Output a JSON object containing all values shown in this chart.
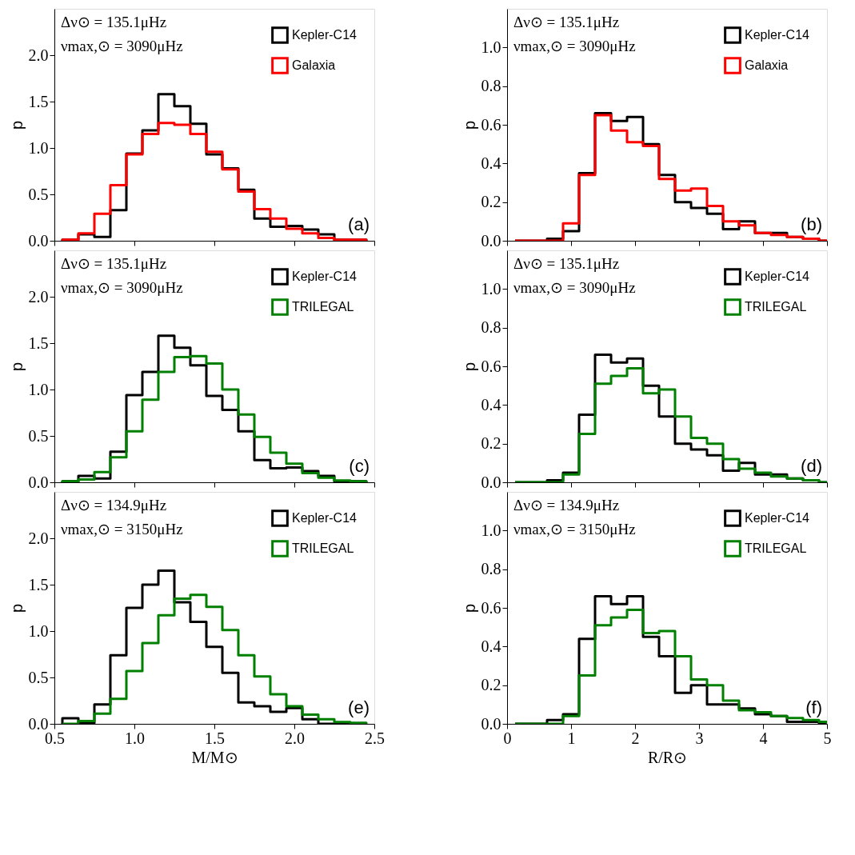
{
  "chart_data": [
    {
      "type": "histogram",
      "ylabel": "p",
      "tick_labels": "y",
      "legend": "top right",
      "bins": [
        0.55,
        0.65,
        0.75,
        0.85,
        0.95,
        1.05,
        1.15,
        1.25,
        1.35,
        1.45,
        1.55,
        1.65,
        1.75,
        1.85,
        1.95,
        2.05,
        2.15,
        2.25,
        2.35,
        2.45
      ],
      "series": [
        {
          "name": "Kepler-C14",
          "color": "#000000",
          "values": [
            0.01,
            0.07,
            0.04,
            0.33,
            0.94,
            1.19,
            1.58,
            1.45,
            1.26,
            0.93,
            0.78,
            0.55,
            0.24,
            0.15,
            0.16,
            0.12,
            0.07,
            0.01,
            0.01
          ]
        },
        {
          "name": "Galaxia",
          "color": "#ff0000",
          "values": [
            0.01,
            0.08,
            0.29,
            0.6,
            0.93,
            1.15,
            1.27,
            1.25,
            1.15,
            0.96,
            0.77,
            0.53,
            0.34,
            0.24,
            0.13,
            0.08,
            0.03,
            0.01,
            0.01
          ]
        }
      ],
      "xlim": [
        0.5,
        2.5
      ],
      "xticks": [
        0.5,
        1,
        1.5,
        2,
        2.5
      ],
      "ylim": [
        0,
        2.5
      ],
      "yticks": [
        {
          "value": 0,
          "label": "0.0"
        },
        0.5,
        {
          "value": 1,
          "label": "1.0"
        },
        1.5,
        {
          "value": 2,
          "label": "2.0"
        }
      ],
      "annotations": [
        "Δν⊙ = 135.1μHz",
        "νmax,⊙ = 3090μHz",
        "(a)"
      ]
    },
    {
      "type": "histogram",
      "ylabel": "p",
      "tick_labels": "y",
      "legend": "top right",
      "bins": [
        0.125,
        0.375,
        0.625,
        0.875,
        1.125,
        1.375,
        1.625,
        1.875,
        2.125,
        2.375,
        2.625,
        2.875,
        3.125,
        3.375,
        3.625,
        3.875,
        4.125,
        4.375,
        4.625,
        4.875,
        5.0
      ],
      "series": [
        {
          "name": "Kepler-C14",
          "color": "#000000",
          "values": [
            0,
            0,
            0.01,
            0.05,
            0.35,
            0.66,
            0.62,
            0.64,
            0.5,
            0.34,
            0.2,
            0.17,
            0.14,
            0.06,
            0.1,
            0.04,
            0.04,
            0.02,
            0.01,
            0
          ]
        },
        {
          "name": "Galaxia",
          "color": "#ff0000",
          "values": [
            0,
            0,
            0,
            0.09,
            0.34,
            0.65,
            0.57,
            0.51,
            0.49,
            0.32,
            0.26,
            0.27,
            0.18,
            0.1,
            0.08,
            0.04,
            0.03,
            0.02,
            0.01,
            0
          ]
        }
      ],
      "xlim": [
        0,
        5
      ],
      "xticks": [
        0,
        1,
        2,
        3,
        4,
        5
      ],
      "ylim": [
        0,
        1.2
      ],
      "yticks": [
        {
          "value": 0,
          "label": "0.0"
        },
        0.2,
        0.4,
        0.6,
        0.8,
        {
          "value": 1,
          "label": "1.0"
        }
      ],
      "annotations": [
        "Δν⊙ = 135.1μHz",
        "νmax,⊙ = 3090μHz",
        "(b)"
      ]
    },
    {
      "type": "histogram",
      "ylabel": "p",
      "tick_labels": "y",
      "legend": "top right",
      "bins": [
        0.55,
        0.65,
        0.75,
        0.85,
        0.95,
        1.05,
        1.15,
        1.25,
        1.35,
        1.45,
        1.55,
        1.65,
        1.75,
        1.85,
        1.95,
        2.05,
        2.15,
        2.25,
        2.35,
        2.45
      ],
      "series": [
        {
          "name": "Kepler-C14",
          "color": "#000000",
          "values": [
            0.01,
            0.07,
            0.04,
            0.33,
            0.94,
            1.19,
            1.58,
            1.45,
            1.26,
            0.93,
            0.78,
            0.55,
            0.24,
            0.15,
            0.16,
            0.12,
            0.07,
            0.01,
            0.01
          ]
        },
        {
          "name": "TRILEGAL",
          "color": "#008000",
          "values": [
            0.01,
            0.03,
            0.11,
            0.27,
            0.55,
            0.89,
            1.19,
            1.35,
            1.36,
            1.28,
            1.0,
            0.73,
            0.49,
            0.32,
            0.2,
            0.1,
            0.05,
            0.02,
            0.01
          ]
        }
      ],
      "xlim": [
        0.5,
        2.5
      ],
      "xticks": [
        0.5,
        1,
        1.5,
        2,
        2.5
      ],
      "ylim": [
        0,
        2.5
      ],
      "yticks": [
        {
          "value": 0,
          "label": "0.0"
        },
        0.5,
        {
          "value": 1,
          "label": "1.0"
        },
        1.5,
        {
          "value": 2,
          "label": "2.0"
        }
      ],
      "annotations": [
        "Δν⊙ = 135.1μHz",
        "νmax,⊙ = 3090μHz",
        "(c)"
      ]
    },
    {
      "type": "histogram",
      "ylabel": "p",
      "tick_labels": "y",
      "legend": "top right",
      "bins": [
        0.125,
        0.375,
        0.625,
        0.875,
        1.125,
        1.375,
        1.625,
        1.875,
        2.125,
        2.375,
        2.625,
        2.875,
        3.125,
        3.375,
        3.625,
        3.875,
        4.125,
        4.375,
        4.625,
        4.875,
        5.0
      ],
      "series": [
        {
          "name": "Kepler-C14",
          "color": "#000000",
          "values": [
            0,
            0,
            0.01,
            0.05,
            0.35,
            0.66,
            0.62,
            0.64,
            0.5,
            0.34,
            0.2,
            0.17,
            0.14,
            0.06,
            0.1,
            0.04,
            0.04,
            0.02,
            0.01,
            0
          ]
        },
        {
          "name": "TRILEGAL",
          "color": "#008000",
          "values": [
            0,
            0,
            0,
            0.04,
            0.25,
            0.51,
            0.55,
            0.59,
            0.46,
            0.48,
            0.34,
            0.23,
            0.2,
            0.12,
            0.07,
            0.05,
            0.03,
            0.02,
            0.01,
            0
          ]
        }
      ],
      "xlim": [
        0,
        5
      ],
      "xticks": [
        0,
        1,
        2,
        3,
        4,
        5
      ],
      "ylim": [
        0,
        1.2
      ],
      "yticks": [
        {
          "value": 0,
          "label": "0.0"
        },
        0.2,
        0.4,
        0.6,
        0.8,
        {
          "value": 1,
          "label": "1.0"
        }
      ],
      "annotations": [
        "Δν⊙ = 135.1μHz",
        "νmax,⊙ = 3090μHz",
        "(d)"
      ]
    },
    {
      "type": "histogram",
      "ylabel": "p",
      "xlabel": "M/M⊙",
      "legend": "top right",
      "bins": [
        0.55,
        0.65,
        0.75,
        0.85,
        0.95,
        1.05,
        1.15,
        1.25,
        1.35,
        1.45,
        1.55,
        1.65,
        1.75,
        1.85,
        1.95,
        2.05,
        2.15,
        2.25,
        2.35,
        2.45
      ],
      "series": [
        {
          "name": "Kepler-C14",
          "color": "#000000",
          "values": [
            0.06,
            0.01,
            0.21,
            0.74,
            1.25,
            1.5,
            1.65,
            1.31,
            1.1,
            0.83,
            0.55,
            0.23,
            0.19,
            0.13,
            0.17,
            0.05,
            0,
            0,
            0
          ]
        },
        {
          "name": "TRILEGAL",
          "color": "#008000",
          "values": [
            0,
            0.03,
            0.11,
            0.27,
            0.57,
            0.87,
            1.17,
            1.35,
            1.39,
            1.26,
            1.01,
            0.74,
            0.51,
            0.32,
            0.19,
            0.1,
            0.05,
            0.02,
            0.01
          ]
        }
      ],
      "xlim": [
        0.5,
        2.5
      ],
      "xticks": [
        0.5,
        {
          "value": 1,
          "label": "1.0"
        },
        1.5,
        {
          "value": 2,
          "label": "2.0"
        },
        2.5
      ],
      "ylim": [
        0,
        2.5
      ],
      "yticks": [
        {
          "value": 0,
          "label": "0.0"
        },
        0.5,
        {
          "value": 1,
          "label": "1.0"
        },
        1.5,
        {
          "value": 2,
          "label": "2.0"
        }
      ],
      "annotations": [
        "Δν⊙ = 134.9μHz",
        "νmax,⊙ = 3150μHz",
        "(e)"
      ]
    },
    {
      "type": "histogram",
      "ylabel": "p",
      "xlabel": "R/R⊙",
      "legend": "top right",
      "bins": [
        0.125,
        0.375,
        0.625,
        0.875,
        1.125,
        1.375,
        1.625,
        1.875,
        2.125,
        2.375,
        2.625,
        2.875,
        3.125,
        3.375,
        3.625,
        3.875,
        4.125,
        4.375,
        4.625,
        4.875,
        5.0
      ],
      "series": [
        {
          "name": "Kepler-C14",
          "color": "#000000",
          "values": [
            0,
            0,
            0.02,
            0.05,
            0.44,
            0.66,
            0.62,
            0.66,
            0.45,
            0.35,
            0.16,
            0.2,
            0.1,
            0.1,
            0.08,
            0.05,
            0.04,
            0.01,
            0.01,
            0
          ]
        },
        {
          "name": "TRILEGAL",
          "color": "#008000",
          "values": [
            0,
            0,
            0,
            0.04,
            0.25,
            0.51,
            0.55,
            0.59,
            0.47,
            0.48,
            0.35,
            0.23,
            0.2,
            0.12,
            0.07,
            0.06,
            0.04,
            0.03,
            0.02,
            0.01
          ]
        }
      ],
      "xlim": [
        0,
        5
      ],
      "xticks": [
        0,
        1,
        2,
        3,
        4,
        5
      ],
      "ylim": [
        0,
        1.2
      ],
      "yticks": [
        {
          "value": 0,
          "label": "0.0"
        },
        0.2,
        0.4,
        0.6,
        0.8,
        {
          "value": 1,
          "label": "1.0"
        }
      ],
      "annotations": [
        "Δν⊙ = 134.9μHz",
        "νmax,⊙ = 3150μHz",
        "(f)"
      ]
    }
  ]
}
